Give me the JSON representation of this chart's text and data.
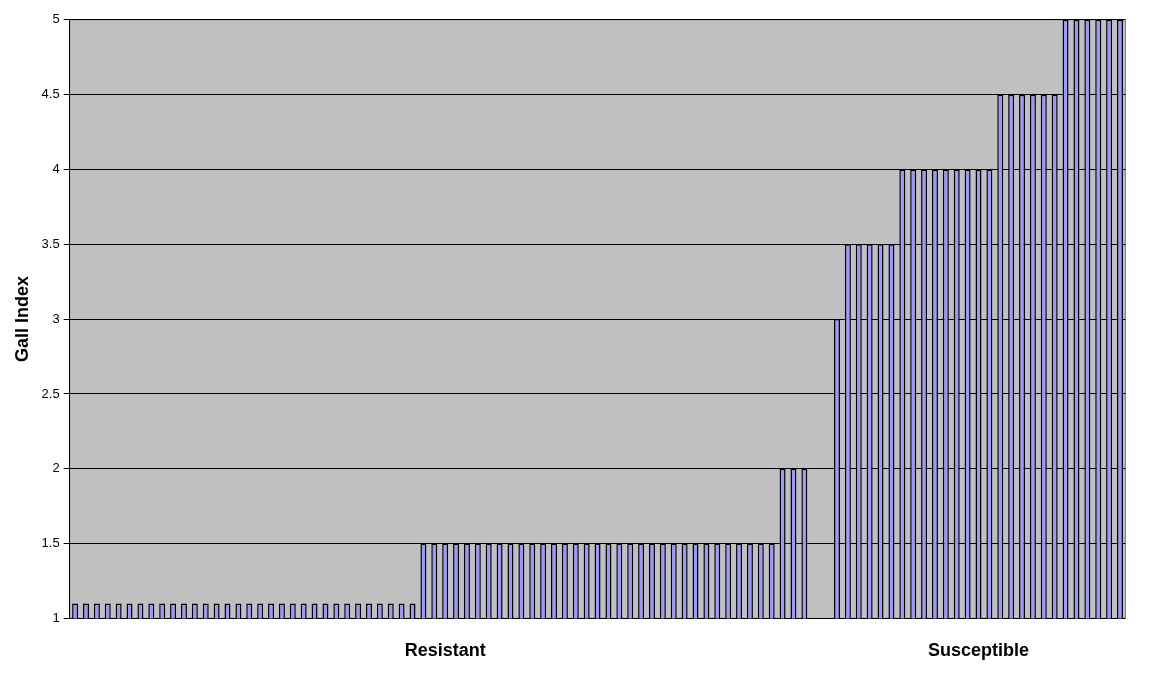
{
  "chart_data": {
    "type": "bar",
    "ylabel": "Gall Index",
    "categories": [
      null,
      null,
      null,
      null,
      null,
      null,
      null,
      null,
      null,
      null,
      null,
      null,
      null,
      null,
      null,
      null,
      null,
      null,
      null,
      null,
      null,
      null,
      null,
      null,
      null,
      null,
      null,
      null,
      null,
      null,
      null,
      null,
      null,
      null,
      "Resistant",
      null,
      null,
      null,
      null,
      null,
      null,
      null,
      null,
      null,
      null,
      null,
      null,
      null,
      null,
      null,
      null,
      null,
      null,
      null,
      null,
      null,
      null,
      null,
      null,
      null,
      null,
      null,
      null,
      null,
      null,
      null,
      null,
      null,
      null,
      null,
      null,
      null,
      null,
      null,
      null,
      null,
      null,
      null,
      null,
      null,
      null,
      null,
      null,
      "Susceptible",
      null,
      null,
      null,
      null,
      null,
      null,
      null,
      null,
      null,
      null,
      null,
      null,
      null
    ],
    "values": [
      1.1,
      1.1,
      1.1,
      1.1,
      1.1,
      1.1,
      1.1,
      1.1,
      1.1,
      1.1,
      1.1,
      1.1,
      1.1,
      1.1,
      1.1,
      1.1,
      1.1,
      1.1,
      1.1,
      1.1,
      1.1,
      1.1,
      1.1,
      1.1,
      1.1,
      1.1,
      1.1,
      1.1,
      1.1,
      1.1,
      1.1,
      1.1,
      1.5,
      1.5,
      1.5,
      1.5,
      1.5,
      1.5,
      1.5,
      1.5,
      1.5,
      1.5,
      1.5,
      1.5,
      1.5,
      1.5,
      1.5,
      1.5,
      1.5,
      1.5,
      1.5,
      1.5,
      1.5,
      1.5,
      1.5,
      1.5,
      1.5,
      1.5,
      1.5,
      1.5,
      1.5,
      1.5,
      1.5,
      1.5,
      1.5,
      2,
      2,
      2,
      null,
      null,
      3,
      3.5,
      3.5,
      3.5,
      3.5,
      3.5,
      4,
      4,
      4,
      4,
      4,
      4,
      4,
      4,
      4,
      4.5,
      4.5,
      4.5,
      4.5,
      4.5,
      4.5,
      5,
      5,
      5,
      5,
      5,
      5
    ],
    "color": "#9999ff",
    "ylim": [
      1,
      5
    ],
    "yticks": [
      1,
      1.5,
      2,
      2.5,
      3,
      3.5,
      4,
      4.5,
      5
    ],
    "grid": "y",
    "legend": false
  }
}
